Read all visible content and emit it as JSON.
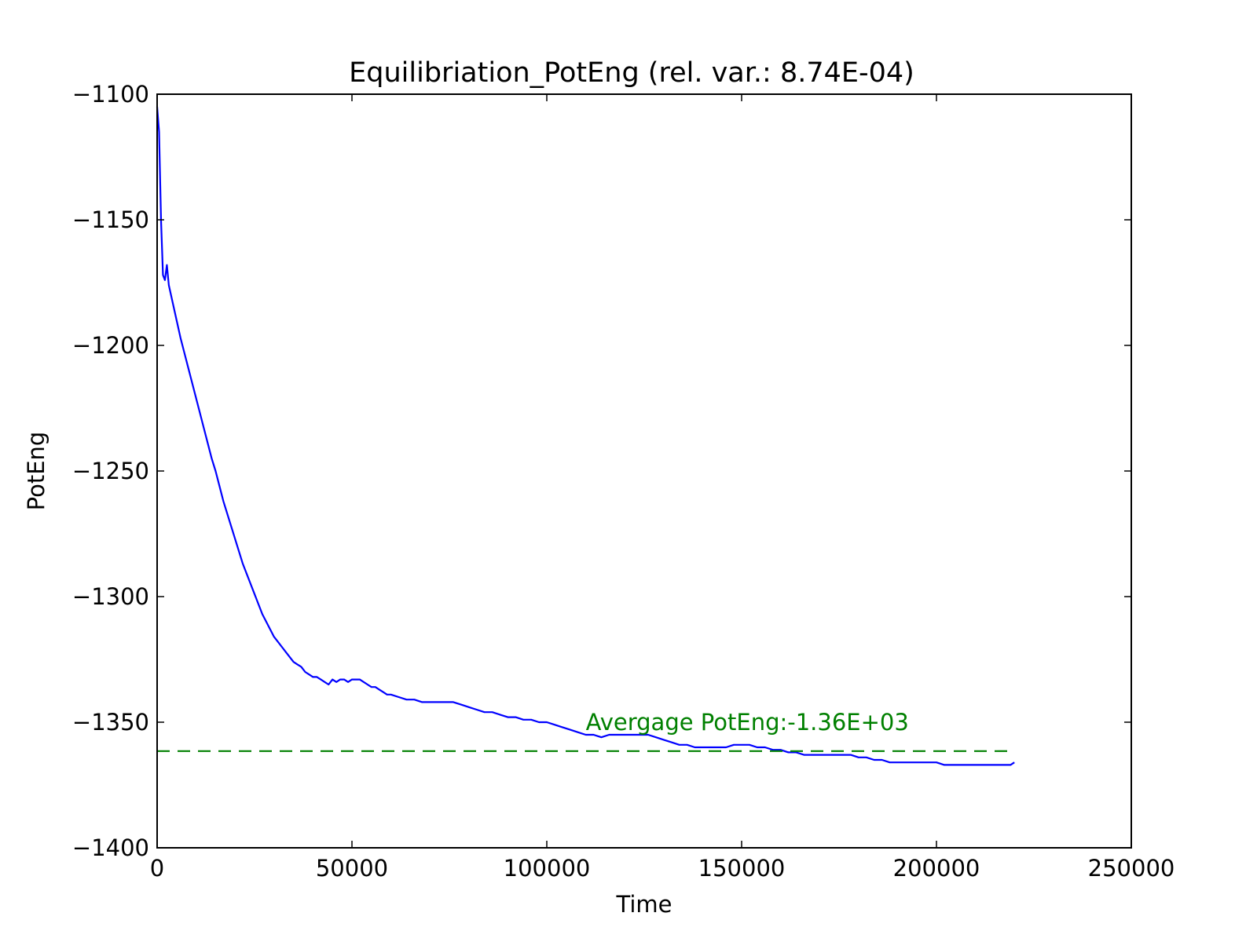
{
  "chart_data": {
    "type": "line",
    "title": "Equilibriation_PotEng (rel. var.: 8.74E-04)",
    "xlabel": "Time",
    "ylabel": "PotEng",
    "xlim": [
      0,
      250000
    ],
    "ylim": [
      -1400,
      -1100
    ],
    "x_ticks": [
      0,
      50000,
      100000,
      150000,
      200000,
      250000
    ],
    "x_tick_labels": [
      "0",
      "50000",
      "100000",
      "150000",
      "200000",
      "250000"
    ],
    "y_ticks": [
      -1400,
      -1350,
      -1300,
      -1250,
      -1200,
      -1150,
      -1100
    ],
    "y_tick_labels": [
      "−1400",
      "−1350",
      "−1300",
      "−1250",
      "−1200",
      "−1150",
      "−1100"
    ],
    "grid": false,
    "series": [
      {
        "color": "#0000ff",
        "style": "solid",
        "x": [
          0,
          500,
          1000,
          1500,
          2000,
          2500,
          3000,
          4000,
          5000,
          6000,
          7000,
          8000,
          9000,
          10000,
          11000,
          12000,
          13000,
          14000,
          15000,
          16000,
          17000,
          18000,
          19000,
          20000,
          21000,
          22000,
          23000,
          24000,
          25000,
          26000,
          27000,
          28000,
          29000,
          30000,
          31000,
          32000,
          33000,
          34000,
          35000,
          36000,
          37000,
          38000,
          39000,
          40000,
          41000,
          42000,
          43000,
          44000,
          45000,
          46000,
          47000,
          48000,
          49000,
          50000,
          51000,
          52000,
          53000,
          54000,
          55000,
          56000,
          57000,
          58000,
          59000,
          60000,
          62000,
          64000,
          66000,
          68000,
          70000,
          72000,
          74000,
          76000,
          78000,
          80000,
          82000,
          84000,
          86000,
          88000,
          90000,
          92000,
          94000,
          96000,
          98000,
          100000,
          102000,
          104000,
          106000,
          108000,
          110000,
          112000,
          114000,
          116000,
          118000,
          120000,
          122000,
          124000,
          126000,
          128000,
          130000,
          132000,
          134000,
          136000,
          138000,
          140000,
          142000,
          144000,
          146000,
          148000,
          150000,
          152000,
          154000,
          156000,
          158000,
          160000,
          162000,
          164000,
          166000,
          168000,
          170000,
          172000,
          174000,
          176000,
          178000,
          180000,
          182000,
          184000,
          186000,
          188000,
          190000,
          192000,
          194000,
          196000,
          198000,
          200000,
          202000,
          204000,
          206000,
          208000,
          210000,
          212000,
          214000,
          216000,
          218000,
          219000,
          220000
        ],
        "y": [
          -1105,
          -1115,
          -1150,
          -1172,
          -1174,
          -1168,
          -1176,
          -1183,
          -1190,
          -1197,
          -1203,
          -1209,
          -1215,
          -1221,
          -1227,
          -1233,
          -1239,
          -1245,
          -1250,
          -1256,
          -1262,
          -1267,
          -1272,
          -1277,
          -1282,
          -1287,
          -1291,
          -1295,
          -1299,
          -1303,
          -1307,
          -1310,
          -1313,
          -1316,
          -1318,
          -1320,
          -1322,
          -1324,
          -1326,
          -1327,
          -1328,
          -1330,
          -1331,
          -1332,
          -1332,
          -1333,
          -1334,
          -1335,
          -1333,
          -1334,
          -1333,
          -1333,
          -1334,
          -1333,
          -1333,
          -1333,
          -1334,
          -1335,
          -1336,
          -1336,
          -1337,
          -1338,
          -1339,
          -1339,
          -1340,
          -1341,
          -1341,
          -1342,
          -1342,
          -1342,
          -1342,
          -1342,
          -1343,
          -1344,
          -1345,
          -1346,
          -1346,
          -1347,
          -1348,
          -1348,
          -1349,
          -1349,
          -1350,
          -1350,
          -1351,
          -1352,
          -1353,
          -1354,
          -1355,
          -1355,
          -1356,
          -1355,
          -1355,
          -1355,
          -1355,
          -1355,
          -1355,
          -1356,
          -1357,
          -1358,
          -1359,
          -1359,
          -1360,
          -1360,
          -1360,
          -1360,
          -1360,
          -1359,
          -1359,
          -1359,
          -1360,
          -1360,
          -1361,
          -1361,
          -1362,
          -1362,
          -1363,
          -1363,
          -1363,
          -1363,
          -1363,
          -1363,
          -1363,
          -1364,
          -1364,
          -1365,
          -1365,
          -1366,
          -1366,
          -1366,
          -1366,
          -1366,
          -1366,
          -1366,
          -1367,
          -1367,
          -1367,
          -1367,
          -1367,
          -1367,
          -1367,
          -1367,
          -1367,
          -1367,
          -1366
        ]
      },
      {
        "color": "#008000",
        "style": "dashed",
        "x": [
          0,
          220000
        ],
        "y": [
          -1361.5,
          -1361.5
        ]
      }
    ],
    "annotations": [
      {
        "text": "Avergage PotEng:-1.36E+03",
        "x": 110000,
        "y": -1350,
        "color": "#008000"
      }
    ]
  }
}
